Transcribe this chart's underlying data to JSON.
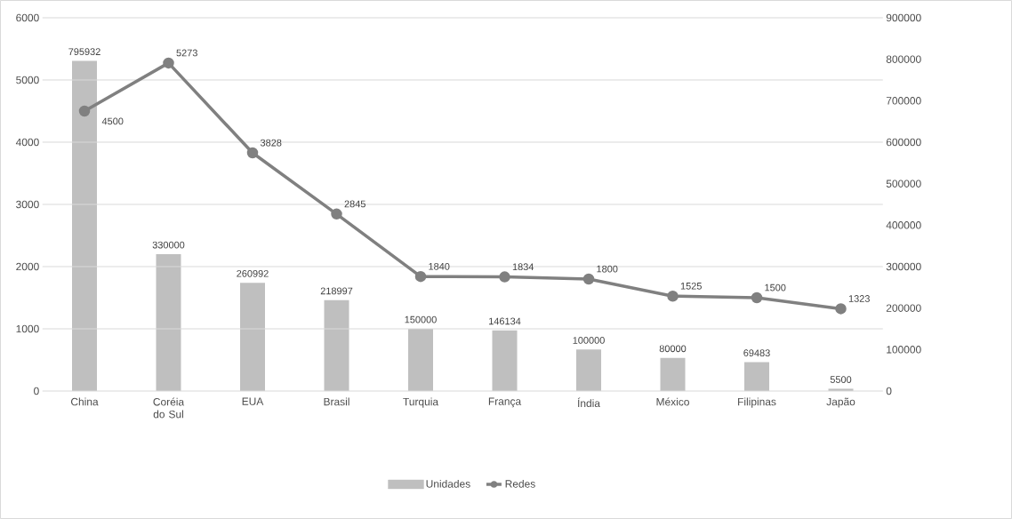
{
  "chart_data": {
    "type": "bar",
    "categories": [
      "China",
      "Coréia do Sul",
      "EUA",
      "Brasil",
      "Turquia",
      "França",
      "Índia",
      "México",
      "Filipinas",
      "Japão"
    ],
    "series": [
      {
        "name": "Unidades",
        "axis": "y2",
        "color": "#bfbfbf",
        "values": [
          795932,
          330000,
          260992,
          218997,
          150000,
          146134,
          100000,
          80000,
          69483,
          5500
        ]
      },
      {
        "name": "Redes",
        "type": "line",
        "color": "#808080",
        "values": [
          4500,
          5273,
          3828,
          2845,
          1840,
          1834,
          1800,
          1525,
          1500,
          1323
        ]
      }
    ],
    "marker": "circle",
    "ylim": [
      0,
      6000
    ],
    "yticks": [
      0,
      1000,
      2000,
      3000,
      4000,
      5000,
      6000
    ],
    "y2lim": [
      0,
      900000
    ],
    "y2ticks": [
      0,
      100000,
      200000,
      300000,
      400000,
      500000,
      600000,
      700000,
      800000,
      900000
    ],
    "grid": "y",
    "legend": "bottom",
    "data_labels": true
  }
}
